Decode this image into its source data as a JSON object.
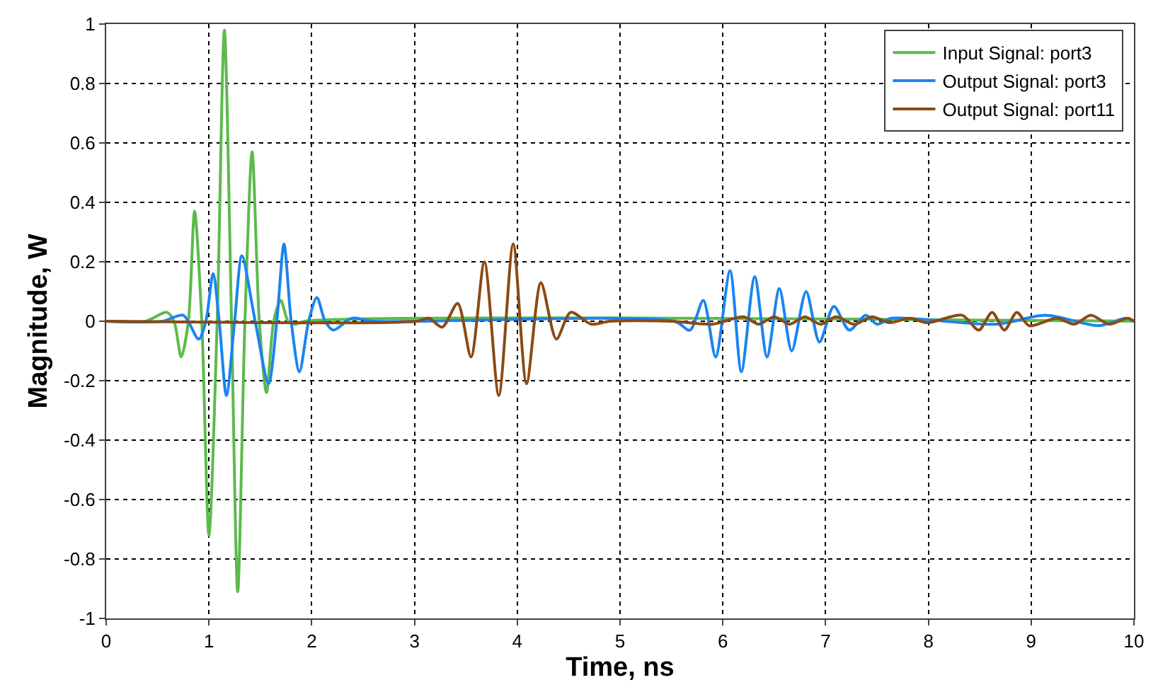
{
  "chart_data": {
    "type": "line",
    "xlabel": "Time, ns",
    "ylabel": "Magnitude, W",
    "xlim": [
      0,
      10
    ],
    "ylim": [
      -1,
      1
    ],
    "xticks": [
      0,
      1,
      2,
      3,
      4,
      5,
      6,
      7,
      8,
      9,
      10
    ],
    "yticks": [
      -1,
      -0.8,
      -0.6,
      -0.4,
      -0.2,
      0,
      0.2,
      0.4,
      0.6,
      0.8,
      1
    ],
    "grid": true,
    "legend": "top right",
    "marker": "none",
    "line_style": "solid",
    "series": [
      {
        "name": "Input Signal: port3",
        "color": "#5cba4c",
        "x": [
          0,
          0.38,
          0.59,
          0.66,
          0.73,
          0.8,
          0.86,
          0.93,
          1.0,
          1.08,
          1.15,
          1.22,
          1.28,
          1.35,
          1.42,
          1.49,
          1.56,
          1.63,
          1.7,
          1.77,
          1.84,
          1.93,
          10
        ],
        "values": [
          0,
          0,
          0.03,
          0,
          -0.12,
          0,
          0.37,
          0,
          -0.72,
          0,
          0.98,
          0,
          -0.91,
          0,
          0.57,
          0,
          -0.24,
          0,
          0.07,
          0,
          -0.01,
          0,
          0
        ]
      },
      {
        "name": "Output Signal: port3",
        "color": "#1a84f0",
        "x": [
          0,
          0.55,
          0.75,
          0.9,
          0.97,
          1.04,
          1.1,
          1.17,
          1.25,
          1.32,
          1.45,
          1.58,
          1.66,
          1.73,
          1.8,
          1.88,
          1.97,
          2.05,
          2.13,
          2.21,
          2.39,
          2.6,
          5.53,
          5.68,
          5.81,
          5.93,
          6.07,
          6.18,
          6.31,
          6.43,
          6.55,
          6.67,
          6.81,
          6.94,
          7.08,
          7.23,
          7.39,
          7.5,
          7.64,
          8.66,
          9.14,
          9.66,
          9.92,
          10
        ],
        "values": [
          0,
          0,
          0.02,
          -0.06,
          0,
          0.16,
          0,
          -0.25,
          0,
          0.22,
          0,
          -0.21,
          0,
          0.26,
          0,
          -0.17,
          0,
          0.08,
          0,
          -0.03,
          0.01,
          0,
          0,
          -0.03,
          0.07,
          -0.12,
          0.17,
          -0.17,
          0.15,
          -0.12,
          0.11,
          -0.1,
          0.1,
          -0.07,
          0.05,
          -0.03,
          0.02,
          -0.01,
          0.01,
          -0.01,
          0.02,
          -0.015,
          0.01,
          0
        ]
      },
      {
        "name": "Output Signal: port11",
        "color": "#8b4a12",
        "x": [
          0,
          3.02,
          3.14,
          3.27,
          3.42,
          3.55,
          3.68,
          3.82,
          3.96,
          4.09,
          4.23,
          4.38,
          4.52,
          4.72,
          4.9,
          5.5,
          5.9,
          6.2,
          6.35,
          6.5,
          6.65,
          6.8,
          6.95,
          7.1,
          7.28,
          7.45,
          7.62,
          7.82,
          7.99,
          8.33,
          8.49,
          8.62,
          8.74,
          8.86,
          8.98,
          9.25,
          9.42,
          9.58,
          9.76,
          9.94,
          10
        ],
        "values": [
          0,
          0,
          0.01,
          -0.02,
          0.06,
          -0.12,
          0.2,
          -0.25,
          0.26,
          -0.21,
          0.13,
          -0.06,
          0.03,
          -0.01,
          0,
          0,
          -0.01,
          0.015,
          -0.01,
          0.015,
          -0.01,
          0.015,
          -0.01,
          0.015,
          -0.01,
          0.015,
          -0.005,
          0.01,
          -0.005,
          0.02,
          -0.03,
          0.03,
          -0.03,
          0.03,
          -0.015,
          0.01,
          -0.01,
          0.02,
          -0.01,
          0.01,
          0
        ]
      }
    ]
  }
}
